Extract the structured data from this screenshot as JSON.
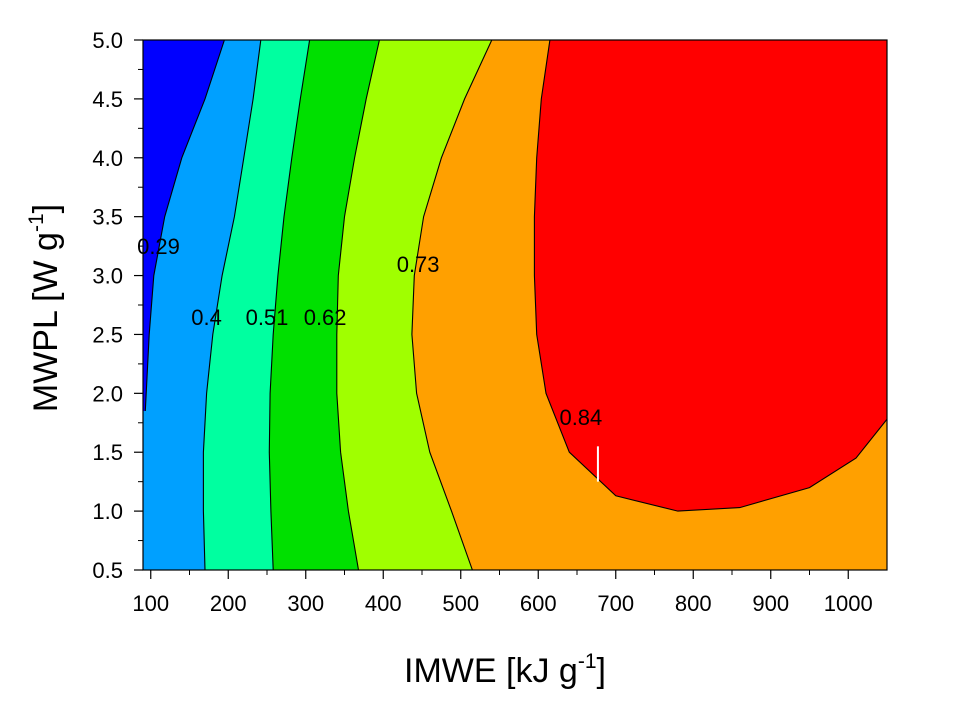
{
  "chart_data": {
    "type": "contour",
    "xlabel": {
      "main": "IMWE [kJ g",
      "sup": "-1",
      "end": "]"
    },
    "ylabel": {
      "main": "MWPL [W g",
      "sup": "-1",
      "end": "]"
    },
    "xlim": [
      90,
      1050
    ],
    "ylim": [
      0.5,
      5.0
    ],
    "x_ticks": [
      "100",
      "200",
      "300",
      "400",
      "500",
      "600",
      "700",
      "800",
      "900",
      "1000"
    ],
    "x_tick_values": [
      100,
      200,
      300,
      400,
      500,
      600,
      700,
      800,
      900,
      1000
    ],
    "y_ticks": [
      "0.5",
      "1.0",
      "1.5",
      "2.0",
      "2.5",
      "3.0",
      "3.5",
      "4.0",
      "4.5",
      "5.0"
    ],
    "y_tick_values": [
      0.5,
      1.0,
      1.5,
      2.0,
      2.5,
      3.0,
      3.5,
      4.0,
      4.5,
      5.0
    ],
    "levels": [
      0.29,
      0.4,
      0.51,
      0.62,
      0.73,
      0.84
    ],
    "level_colors": [
      "#0000ff",
      "#00a0ff",
      "#00ffa0",
      "#00e000",
      "#a0ff00",
      "#ffa000",
      "#ff0000"
    ],
    "contour_lines": [
      {
        "level": 0.29,
        "points": [
          [
            93,
            1.85
          ],
          [
            98,
            2.5
          ],
          [
            104,
            3.0
          ],
          [
            118,
            3.5
          ],
          [
            140,
            4.0
          ],
          [
            170,
            4.5
          ],
          [
            195,
            5.0
          ]
        ]
      },
      {
        "level": 0.4,
        "points": [
          [
            170,
            0.5
          ],
          [
            168,
            1.0
          ],
          [
            168,
            1.5
          ],
          [
            172,
            2.0
          ],
          [
            180,
            2.5
          ],
          [
            192,
            3.0
          ],
          [
            208,
            3.5
          ],
          [
            220,
            4.0
          ],
          [
            232,
            4.5
          ],
          [
            242,
            5.0
          ]
        ]
      },
      {
        "level": 0.51,
        "points": [
          [
            258,
            0.5
          ],
          [
            255,
            1.0
          ],
          [
            253,
            1.5
          ],
          [
            254,
            2.0
          ],
          [
            258,
            2.5
          ],
          [
            264,
            3.0
          ],
          [
            272,
            3.5
          ],
          [
            282,
            4.0
          ],
          [
            293,
            4.5
          ],
          [
            305,
            5.0
          ]
        ]
      },
      {
        "level": 0.62,
        "points": [
          [
            368,
            0.5
          ],
          [
            355,
            1.0
          ],
          [
            345,
            1.5
          ],
          [
            340,
            2.0
          ],
          [
            340,
            2.5
          ],
          [
            342,
            3.0
          ],
          [
            350,
            3.5
          ],
          [
            363,
            4.0
          ],
          [
            378,
            4.5
          ],
          [
            395,
            5.0
          ]
        ]
      },
      {
        "level": 0.73,
        "points": [
          [
            515,
            0.5
          ],
          [
            488,
            1.0
          ],
          [
            460,
            1.5
          ],
          [
            443,
            2.0
          ],
          [
            437,
            2.5
          ],
          [
            440,
            3.0
          ],
          [
            452,
            3.5
          ],
          [
            475,
            4.0
          ],
          [
            505,
            4.5
          ],
          [
            540,
            5.0
          ]
        ]
      },
      {
        "level": 0.84,
        "points": [
          [
            615,
            5.0
          ],
          [
            604,
            4.5
          ],
          [
            598,
            4.0
          ],
          [
            595,
            3.5
          ],
          [
            595,
            3.0
          ],
          [
            598,
            2.5
          ],
          [
            610,
            2.0
          ],
          [
            640,
            1.5
          ],
          [
            700,
            1.13
          ],
          [
            780,
            1.0
          ],
          [
            860,
            1.03
          ],
          [
            950,
            1.2
          ],
          [
            1010,
            1.45
          ],
          [
            1050,
            1.78
          ]
        ]
      }
    ],
    "contour_labels": [
      {
        "text": "0.29",
        "x": 110,
        "y": 3.25
      },
      {
        "text": "0.4",
        "x": 172,
        "y": 2.65
      },
      {
        "text": "0.51",
        "x": 250,
        "y": 2.65
      },
      {
        "text": "0.62",
        "x": 325,
        "y": 2.65
      },
      {
        "text": "0.73",
        "x": 445,
        "y": 3.1
      },
      {
        "text": "0.84",
        "x": 655,
        "y": 1.8
      }
    ],
    "marker": {
      "x": 677,
      "y_from": 1.25,
      "y_to": 1.55
    }
  }
}
